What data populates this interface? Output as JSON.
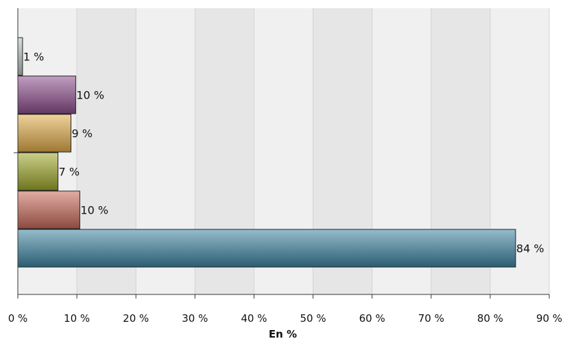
{
  "chart_data": {
    "type": "bar",
    "orientation": "horizontal",
    "title": "",
    "xlabel": "En %",
    "ylabel": "",
    "xlim": [
      0,
      90
    ],
    "xticks": [
      0,
      10,
      20,
      30,
      40,
      50,
      60,
      70,
      80,
      90
    ],
    "tick_labels": [
      "0 %",
      "10 %",
      "20 %",
      "30 %",
      "40 %",
      "50 %",
      "60 %",
      "70 %",
      "80 %",
      "90 %"
    ],
    "grid": true,
    "bars": [
      {
        "value": 0.8,
        "label": "1 %",
        "color": "#b7c7c2"
      },
      {
        "value": 9.8,
        "label": "10 %",
        "color": "#8e4f8e"
      },
      {
        "value": 9.0,
        "label": "9 %",
        "color": "#e2ad4a"
      },
      {
        "value": 6.8,
        "label": "7 %",
        "color": "#9ea72a"
      },
      {
        "value": 10.5,
        "label": "10 %",
        "color": "#c96a5a"
      },
      {
        "value": 84.3,
        "label": "84 %",
        "color": "#3f85a3"
      }
    ]
  }
}
